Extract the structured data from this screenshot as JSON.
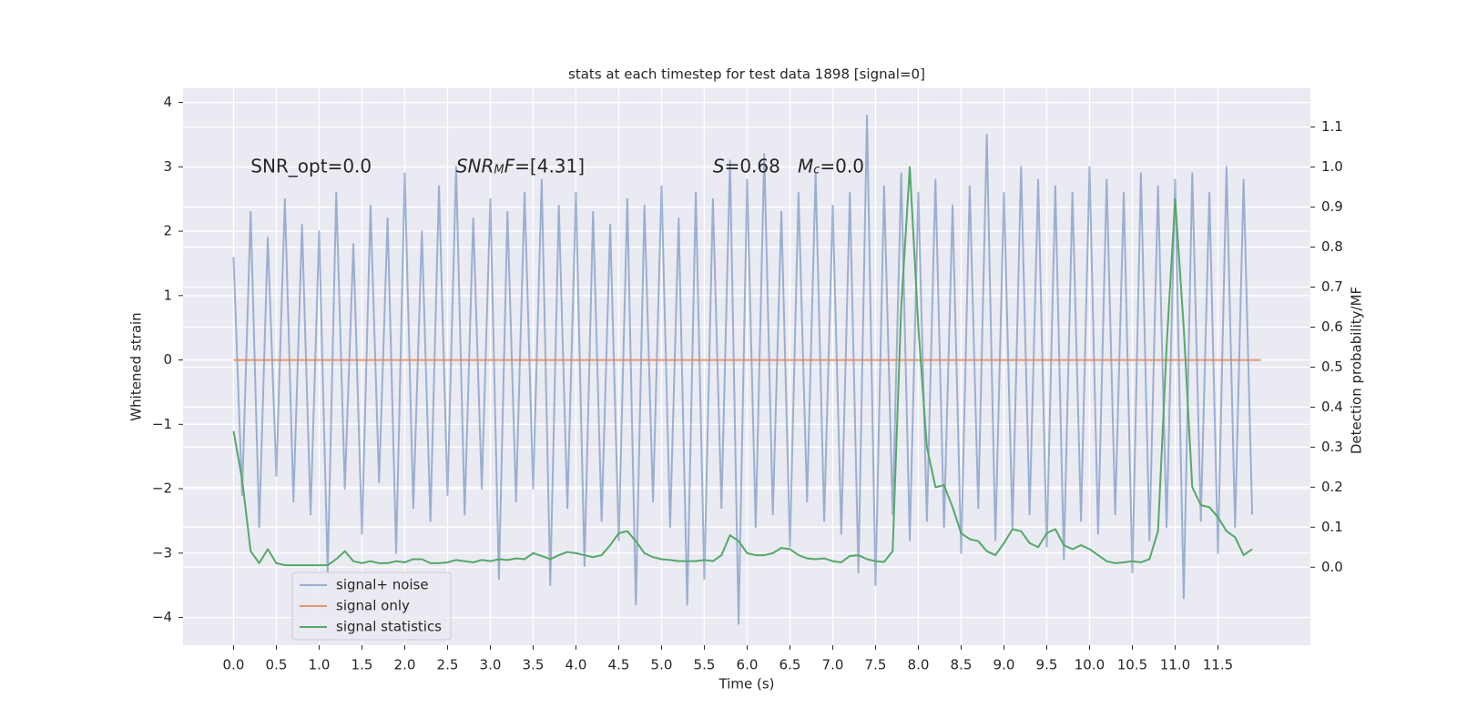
{
  "chart_data": {
    "type": "line",
    "title": "stats at each timestep for test data 1898 [signal=0]",
    "x_label": "Time (s)",
    "y_label": "Whitened strain",
    "y2_label": "Detection probability/MF",
    "background": "#eaeaf2",
    "grid": true,
    "legend": "lower left",
    "xlim": [
      -0.59,
      12.58
    ],
    "xticks": [
      {
        "value": 0,
        "label": "0.0"
      },
      0.5,
      {
        "value": 1,
        "label": "1.0"
      },
      1.5,
      {
        "value": 2,
        "label": "2.0"
      },
      2.5,
      {
        "value": 3,
        "label": "3.0"
      },
      3.5,
      {
        "value": 4,
        "label": "4.0"
      },
      4.5,
      {
        "value": 5,
        "label": "5.0"
      },
      5.5,
      {
        "value": 6,
        "label": "6.0"
      },
      6.5,
      {
        "value": 7,
        "label": "7.0"
      },
      7.5,
      {
        "value": 8,
        "label": "8.0"
      },
      8.5,
      {
        "value": 9,
        "label": "9.0"
      },
      9.5,
      {
        "value": 10,
        "label": "10.0"
      },
      10.5,
      {
        "value": 11,
        "label": "11.0"
      },
      11.5
    ],
    "ylim": [
      -4.43,
      4.22
    ],
    "yticks": [
      {
        "value": -4,
        "label": "−4"
      },
      {
        "value": -3,
        "label": "−3"
      },
      {
        "value": -2,
        "label": "−2"
      },
      {
        "value": -1,
        "label": "−1"
      },
      0,
      1,
      2,
      3,
      4
    ],
    "y2lim": [
      -0.195,
      1.197
    ],
    "y2ticks": [
      {
        "value": 0,
        "label": "0.0"
      },
      0.1,
      0.2,
      0.3,
      0.4,
      0.5,
      0.6,
      0.7,
      0.8,
      0.9,
      {
        "value": 1,
        "label": "1.0"
      },
      1.1
    ],
    "annotations": [
      {
        "x": 0.2,
        "y": 3,
        "segments": [
          {
            "text": "SNR_opt=0.0"
          }
        ]
      },
      {
        "x": 2.6,
        "y": 3,
        "segments": [
          {
            "text": "SNR",
            "italic": true
          },
          {
            "text": "M",
            "italic": true,
            "sub": true
          },
          {
            "text": "F",
            "italic": true
          },
          {
            "text": "=[4.31]"
          }
        ]
      },
      {
        "x": 5.6,
        "y": 3,
        "segments": [
          {
            "text": "S",
            "italic": true
          },
          {
            "text": "=0.68   "
          },
          {
            "text": "M",
            "italic": true
          },
          {
            "text": "c",
            "italic": true,
            "sub": true
          },
          {
            "text": "=0.0"
          }
        ]
      }
    ],
    "series": [
      {
        "name": "signal+ noise",
        "color": "#4c72b0",
        "alpha": 0.5,
        "x": [
          0.0,
          0.1,
          0.2,
          0.3,
          0.4,
          0.5,
          0.6,
          0.7,
          0.8,
          0.9,
          1.0,
          1.1,
          1.2,
          1.3,
          1.4,
          1.5,
          1.6,
          1.7,
          1.8,
          1.9,
          2.0,
          2.1,
          2.2,
          2.3,
          2.4,
          2.5,
          2.6,
          2.7,
          2.8,
          2.9,
          3.0,
          3.1,
          3.2,
          3.3,
          3.4,
          3.5,
          3.6,
          3.7,
          3.8,
          3.9,
          4.0,
          4.1,
          4.2,
          4.3,
          4.4,
          4.5,
          4.6,
          4.7,
          4.8,
          4.9,
          5.0,
          5.1,
          5.2,
          5.3,
          5.4,
          5.5,
          5.6,
          5.7,
          5.8,
          5.9,
          6.0,
          6.1,
          6.2,
          6.3,
          6.4,
          6.5,
          6.6,
          6.7,
          6.8,
          6.9,
          7.0,
          7.1,
          7.2,
          7.3,
          7.4,
          7.5,
          7.6,
          7.7,
          7.8,
          7.9,
          8.0,
          8.1,
          8.2,
          8.3,
          8.4,
          8.5,
          8.6,
          8.7,
          8.8,
          8.9,
          9.0,
          9.1,
          9.2,
          9.3,
          9.4,
          9.5,
          9.6,
          9.7,
          9.8,
          9.9,
          10.0,
          10.1,
          10.2,
          10.3,
          10.4,
          10.5,
          10.6,
          10.7,
          10.8,
          10.9,
          11.0,
          11.1,
          11.2,
          11.3,
          11.4,
          11.5,
          11.6,
          11.7,
          11.8,
          11.9
        ],
        "values": [
          1.6,
          -2.1,
          2.3,
          -2.6,
          1.9,
          -1.8,
          2.5,
          -2.2,
          2.1,
          -2.4,
          2.0,
          -3.3,
          2.6,
          -2.0,
          1.8,
          -2.7,
          2.4,
          -1.9,
          2.2,
          -3.0,
          2.9,
          -2.3,
          2.0,
          -2.5,
          2.7,
          -2.1,
          3.0,
          -2.4,
          2.2,
          -2.0,
          2.5,
          -3.4,
          2.3,
          -2.2,
          2.6,
          -2.0,
          2.8,
          -3.5,
          2.4,
          -2.3,
          2.6,
          -3.2,
          2.3,
          -2.5,
          2.1,
          -2.8,
          2.5,
          -3.8,
          2.4,
          -2.2,
          2.7,
          -2.6,
          2.2,
          -3.8,
          2.6,
          -3.4,
          2.5,
          -2.3,
          3.1,
          -4.1,
          2.8,
          -2.6,
          3.2,
          -2.4,
          2.3,
          -2.9,
          2.6,
          -2.2,
          2.9,
          -2.5,
          2.4,
          -2.7,
          2.6,
          -3.3,
          3.8,
          -3.5,
          2.7,
          -2.4,
          2.9,
          -2.8,
          2.6,
          -2.5,
          2.8,
          -2.6,
          2.4,
          -3.0,
          2.7,
          -2.3,
          3.5,
          -2.8,
          2.6,
          -2.6,
          3.0,
          -2.4,
          2.8,
          -2.9,
          2.7,
          -3.1,
          2.6,
          -2.5,
          3.0,
          -2.7,
          2.8,
          -2.4,
          2.6,
          -3.3,
          2.9,
          -2.8,
          2.7,
          -2.6,
          2.8,
          -3.7,
          2.9,
          -2.5,
          2.6,
          -3.0,
          3.0,
          -2.6,
          2.8,
          -2.4
        ]
      },
      {
        "name": "signal only",
        "color": "#dd8452",
        "alpha": 0.8,
        "x": [
          0.0,
          12.0
        ],
        "values": [
          0,
          0
        ]
      },
      {
        "name": "signal statistics",
        "color": "#55a868",
        "axis": "y2",
        "x": [
          0.0,
          0.1,
          0.2,
          0.3,
          0.4,
          0.5,
          0.6,
          0.7,
          0.8,
          0.9,
          1.0,
          1.1,
          1.2,
          1.3,
          1.4,
          1.5,
          1.6,
          1.7,
          1.8,
          1.9,
          2.0,
          2.1,
          2.2,
          2.3,
          2.4,
          2.5,
          2.6,
          2.7,
          2.8,
          2.9,
          3.0,
          3.1,
          3.2,
          3.3,
          3.4,
          3.5,
          3.6,
          3.7,
          3.8,
          3.9,
          4.0,
          4.1,
          4.2,
          4.3,
          4.4,
          4.5,
          4.6,
          4.7,
          4.8,
          4.9,
          5.0,
          5.1,
          5.2,
          5.3,
          5.4,
          5.5,
          5.6,
          5.7,
          5.8,
          5.9,
          6.0,
          6.1,
          6.2,
          6.3,
          6.4,
          6.5,
          6.6,
          6.7,
          6.8,
          6.9,
          7.0,
          7.1,
          7.2,
          7.3,
          7.4,
          7.5,
          7.6,
          7.7,
          7.8,
          7.9,
          8.0,
          8.1,
          8.2,
          8.3,
          8.4,
          8.5,
          8.6,
          8.7,
          8.8,
          8.9,
          9.0,
          9.1,
          9.2,
          9.3,
          9.4,
          9.5,
          9.6,
          9.7,
          9.8,
          9.9,
          10.0,
          10.1,
          10.2,
          10.3,
          10.4,
          10.5,
          10.6,
          10.7,
          10.8,
          10.9,
          11.0,
          11.1,
          11.2,
          11.3,
          11.4,
          11.5,
          11.6,
          11.7,
          11.8,
          11.9
        ],
        "values": [
          0.34,
          0.22,
          0.04,
          0.01,
          0.045,
          0.01,
          0.005,
          0.005,
          0.005,
          0.005,
          0.005,
          0.005,
          0.02,
          0.04,
          0.015,
          0.01,
          0.015,
          0.01,
          0.01,
          0.015,
          0.012,
          0.02,
          0.02,
          0.01,
          0.01,
          0.012,
          0.018,
          0.015,
          0.012,
          0.018,
          0.015,
          0.02,
          0.018,
          0.022,
          0.02,
          0.035,
          0.028,
          0.02,
          0.03,
          0.038,
          0.035,
          0.03,
          0.025,
          0.03,
          0.055,
          0.085,
          0.09,
          0.065,
          0.035,
          0.025,
          0.02,
          0.018,
          0.015,
          0.015,
          0.015,
          0.018,
          0.015,
          0.03,
          0.08,
          0.065,
          0.035,
          0.03,
          0.03,
          0.035,
          0.048,
          0.045,
          0.03,
          0.022,
          0.02,
          0.022,
          0.015,
          0.012,
          0.028,
          0.03,
          0.02,
          0.015,
          0.013,
          0.04,
          0.65,
          1.0,
          0.6,
          0.3,
          0.2,
          0.205,
          0.15,
          0.085,
          0.07,
          0.065,
          0.04,
          0.03,
          0.06,
          0.095,
          0.09,
          0.06,
          0.05,
          0.085,
          0.095,
          0.055,
          0.045,
          0.055,
          0.045,
          0.03,
          0.015,
          0.01,
          0.012,
          0.015,
          0.012,
          0.02,
          0.09,
          0.55,
          0.92,
          0.6,
          0.2,
          0.155,
          0.15,
          0.125,
          0.09,
          0.075,
          0.03,
          0.045
        ]
      }
    ]
  }
}
